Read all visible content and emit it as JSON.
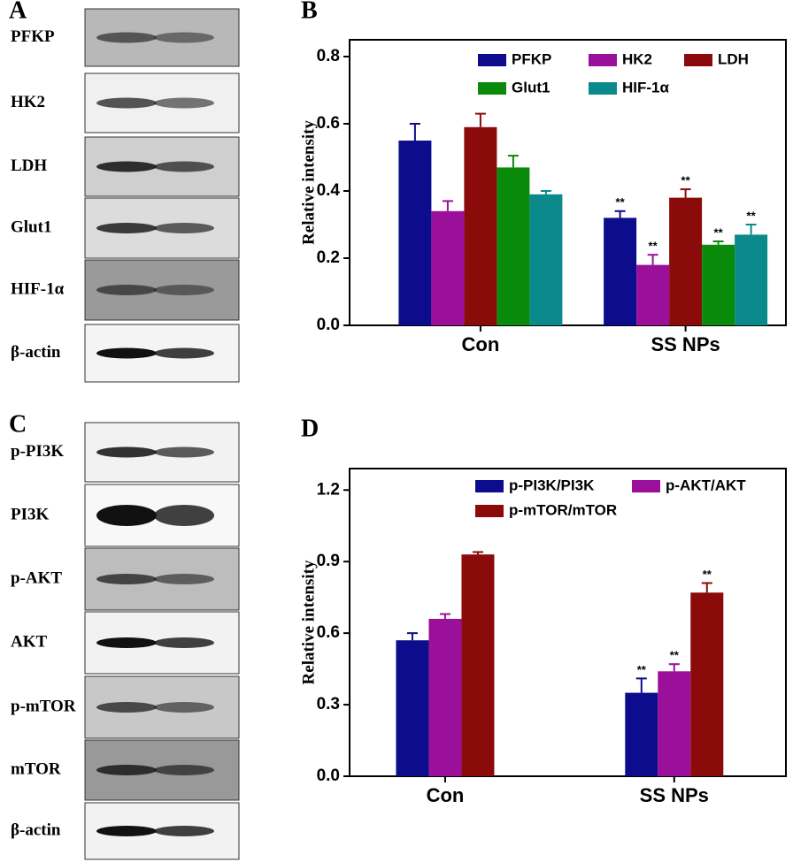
{
  "panel_labels": [
    "A",
    "B",
    "C",
    "D"
  ],
  "blots_a": [
    "PFKP",
    "HK2",
    "LDH",
    "Glut1",
    "HIF-1α",
    "β-actin"
  ],
  "blots_c": [
    "p-PI3K",
    "PI3K",
    "p-AKT",
    "AKT",
    "p-mTOR",
    "mTOR",
    "β-actin"
  ],
  "chart_data": [
    {
      "type": "bar",
      "y_label": "Relative intensity",
      "categories": [
        "Con",
        "SS NPs"
      ],
      "ylim": [
        0,
        0.85
      ],
      "yticks": [
        {
          "value": 0,
          "label": "0.0"
        },
        0.2,
        0.4,
        0.6,
        0.8
      ],
      "series": [
        {
          "name": "PFKP",
          "color": "#0c0c8c",
          "values": [
            0.55,
            0.32
          ],
          "errors": [
            0.05,
            0.02
          ],
          "annotations": [
            null,
            "**"
          ]
        },
        {
          "name": "HK2",
          "color": "#9a109a",
          "values": [
            0.34,
            0.18
          ],
          "errors": [
            0.03,
            0.03
          ],
          "annotations": [
            null,
            "**"
          ]
        },
        {
          "name": "LDH",
          "color": "#8b0a0a",
          "values": [
            0.59,
            0.38
          ],
          "errors": [
            0.04,
            0.025
          ],
          "annotations": [
            null,
            "**"
          ]
        },
        {
          "name": "Glut1",
          "color": "#0a8a0a",
          "values": [
            0.47,
            0.24
          ],
          "errors": [
            0.035,
            0.01
          ],
          "annotations": [
            null,
            "**"
          ]
        },
        {
          "name": "HIF-1α",
          "color": "#0a8a8a",
          "values": [
            0.39,
            0.27
          ],
          "errors": [
            0.01,
            0.03
          ],
          "annotations": [
            null,
            "**"
          ]
        }
      ]
    },
    {
      "type": "bar",
      "y_label": "Relative intensity",
      "categories": [
        "Con",
        "SS NPs"
      ],
      "ylim": [
        0,
        1.29
      ],
      "yticks": [
        {
          "value": 0,
          "label": "0.0"
        },
        0.3,
        0.6,
        0.9,
        1.2
      ],
      "series": [
        {
          "name": "p-PI3K/PI3K",
          "color": "#0c0c8c",
          "values": [
            0.57,
            0.35
          ],
          "errors": [
            0.03,
            0.06
          ],
          "annotations": [
            null,
            "**"
          ]
        },
        {
          "name": "p-AKT/AKT",
          "color": "#9a109a",
          "values": [
            0.66,
            0.44
          ],
          "errors": [
            0.02,
            0.03
          ],
          "annotations": [
            null,
            "**"
          ]
        },
        {
          "name": "p-mTOR/mTOR",
          "color": "#8b0a0a",
          "values": [
            0.93,
            0.77
          ],
          "errors": [
            0.01,
            0.04
          ],
          "annotations": [
            null,
            "**"
          ]
        }
      ]
    }
  ]
}
